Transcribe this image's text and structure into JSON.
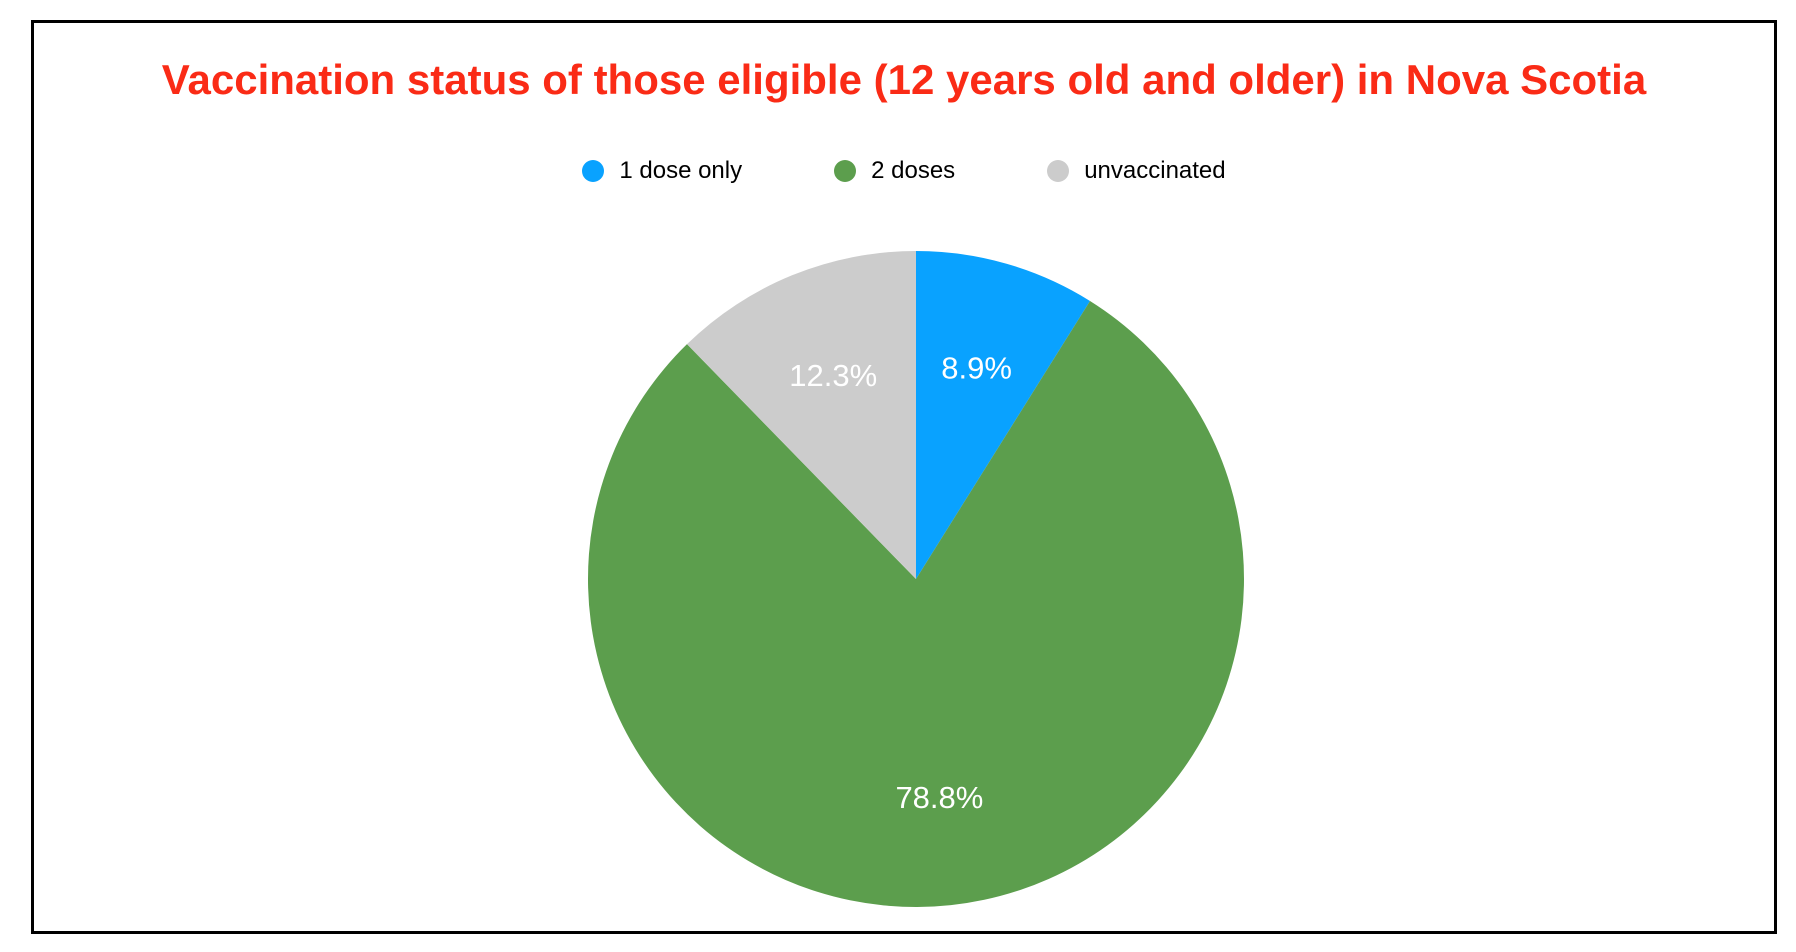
{
  "title": {
    "text": "Vaccination status of those eligible (12 years old and older) in Nova Scotia",
    "color": "#FA2B16"
  },
  "legend": {
    "items": [
      {
        "label": "1 dose only",
        "color": "#09A2FF"
      },
      {
        "label": "2 doses",
        "color": "#5C9E4D"
      },
      {
        "label": "unvaccinated",
        "color": "#CCCCCC"
      }
    ]
  },
  "chart_data": {
    "type": "pie",
    "title": "Vaccination status of those eligible (12 years old and older) in Nova Scotia",
    "categories": [
      "1 dose only",
      "2 doses",
      "unvaccinated"
    ],
    "values": [
      8.9,
      78.8,
      12.3
    ],
    "labels": [
      "8.9%",
      "78.8%",
      "12.3%"
    ],
    "colors": [
      "#09A2FF",
      "#5C9E4D",
      "#CCCCCC"
    ],
    "label_color": "#FFFFFF",
    "start_angle_deg": 0,
    "direction": "clockwise",
    "legend_position": "top",
    "label_radius_factor": 0.67,
    "grid": false
  }
}
